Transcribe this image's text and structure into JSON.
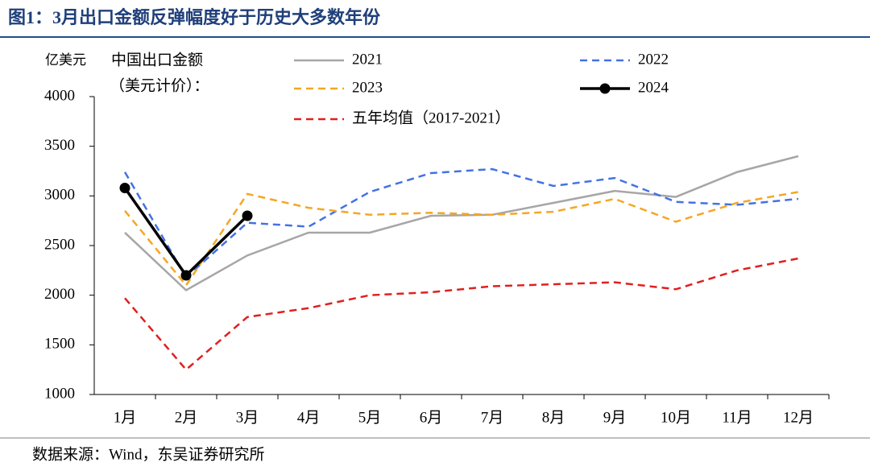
{
  "chart_data": {
    "type": "line",
    "title": "图1：3月出口金额反弹幅度好于历史大多数年份",
    "y_axis_label": "亿美元",
    "annotation": [
      "中国出口金额",
      "（美元计价）："
    ],
    "source": "数据来源：Wind，东吴证券研究所",
    "categories": [
      "1月",
      "2月",
      "3月",
      "4月",
      "5月",
      "6月",
      "7月",
      "8月",
      "9月",
      "10月",
      "11月",
      "12月"
    ],
    "ylim": [
      1000,
      4000
    ],
    "yticks": [
      1000,
      1500,
      2000,
      2500,
      3000,
      3500,
      4000
    ],
    "grid": false,
    "series": [
      {
        "name": "2021",
        "color": "#a6a6a6",
        "dash": false,
        "marker": false,
        "values": [
          2630,
          2050,
          2400,
          2630,
          2630,
          2800,
          2810,
          2930,
          3050,
          2990,
          3240,
          3400
        ]
      },
      {
        "name": "2022",
        "color": "#4472e4",
        "dash": true,
        "marker": false,
        "values": [
          3240,
          2180,
          2730,
          2690,
          3040,
          3230,
          3270,
          3100,
          3180,
          2940,
          2910,
          2970
        ]
      },
      {
        "name": "2023",
        "color": "#f5a623",
        "dash": true,
        "marker": false,
        "values": [
          2850,
          2100,
          3020,
          2880,
          2810,
          2830,
          2810,
          2840,
          2970,
          2740,
          2930,
          3040
        ]
      },
      {
        "name": "2024",
        "color": "#000000",
        "dash": false,
        "marker": true,
        "values": [
          3080,
          2200,
          2800,
          null,
          null,
          null,
          null,
          null,
          null,
          null,
          null,
          null
        ]
      },
      {
        "name": "五年均值（2017-2021）",
        "color": "#e02020",
        "dash": true,
        "marker": false,
        "values": [
          1970,
          1250,
          1780,
          1870,
          2000,
          2030,
          2090,
          2110,
          2130,
          2060,
          2250,
          2370
        ]
      }
    ]
  }
}
